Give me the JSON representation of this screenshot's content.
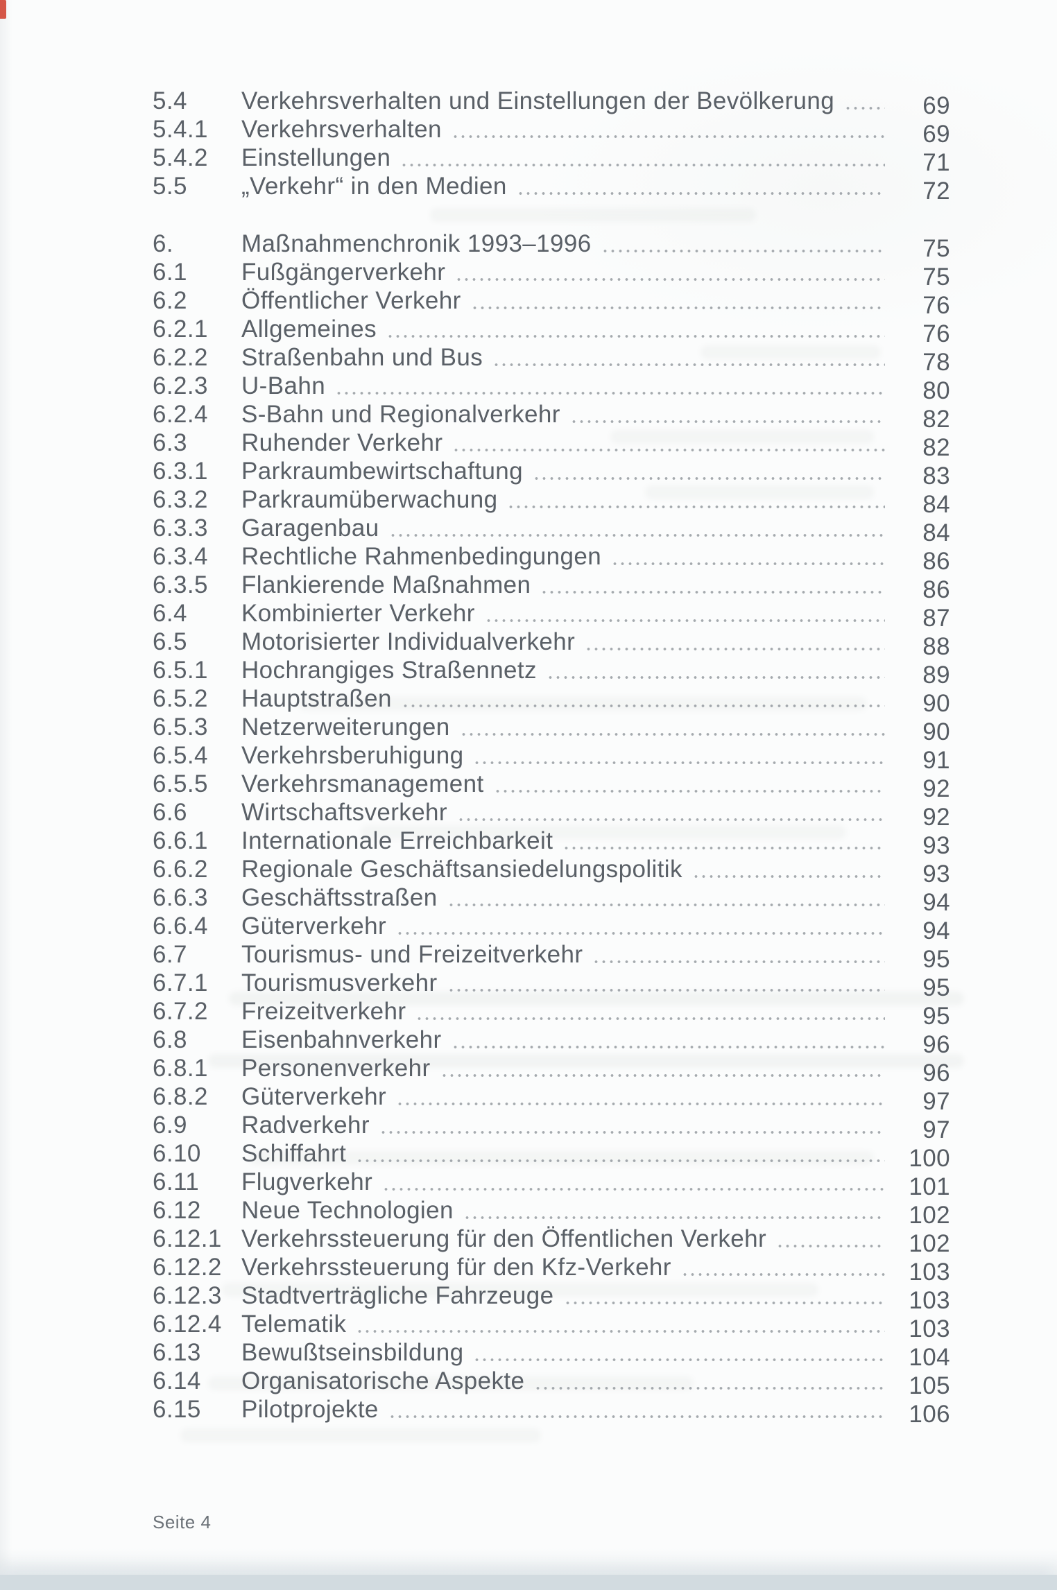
{
  "page": {
    "footer": "Seite 4",
    "colors": {
      "paper": "#fbfcfc",
      "text_gray": "#5a6067",
      "page_number_gray": "#565c63",
      "bottom_band": "#d2dbe0",
      "corner_mark_red": "#cf3a28"
    }
  },
  "toc": {
    "sections": [
      {
        "rows": [
          {
            "num": "5.4",
            "title": "Verkehrsverhalten und Einstellungen der Bevölkerung",
            "page": 69
          },
          {
            "num": "5.4.1",
            "title": "Verkehrsverhalten",
            "page": 69
          },
          {
            "num": "5.4.2",
            "title": "Einstellungen",
            "page": 71
          },
          {
            "num": "5.5",
            "title": "„Verkehr“ in den Medien",
            "page": 72
          }
        ]
      },
      {
        "rows": [
          {
            "num": "6.",
            "title": "Maßnahmenchronik 1993–1996",
            "page": 75
          },
          {
            "num": "6.1",
            "title": "Fußgängerverkehr",
            "page": 75
          },
          {
            "num": "6.2",
            "title": "Öffentlicher Verkehr",
            "page": 76
          },
          {
            "num": "6.2.1",
            "title": "Allgemeines",
            "page": 76
          },
          {
            "num": "6.2.2",
            "title": "Straßenbahn und Bus",
            "page": 78
          },
          {
            "num": "6.2.3",
            "title": "U-Bahn",
            "page": 80
          },
          {
            "num": "6.2.4",
            "title": "S-Bahn und Regionalverkehr",
            "page": 82
          },
          {
            "num": "6.3",
            "title": "Ruhender Verkehr",
            "page": 82
          },
          {
            "num": "6.3.1",
            "title": "Parkraumbewirtschaftung",
            "page": 83
          },
          {
            "num": "6.3.2",
            "title": "Parkraumüberwachung",
            "page": 84
          },
          {
            "num": "6.3.3",
            "title": "Garagenbau",
            "page": 84
          },
          {
            "num": "6.3.4",
            "title": "Rechtliche Rahmenbedingungen",
            "page": 86
          },
          {
            "num": "6.3.5",
            "title": "Flankierende Maßnahmen",
            "page": 86
          },
          {
            "num": "6.4",
            "title": "Kombinierter Verkehr",
            "page": 87
          },
          {
            "num": "6.5",
            "title": "Motorisierter Individualverkehr",
            "page": 88
          },
          {
            "num": "6.5.1",
            "title": "Hochrangiges Straßennetz",
            "page": 89
          },
          {
            "num": "6.5.2",
            "title": "Hauptstraßen",
            "page": 90
          },
          {
            "num": "6.5.3",
            "title": "Netzerweiterungen",
            "page": 90
          },
          {
            "num": "6.5.4",
            "title": "Verkehrsberuhigung",
            "page": 91
          },
          {
            "num": "6.5.5",
            "title": "Verkehrsmanagement",
            "page": 92
          },
          {
            "num": "6.6",
            "title": "Wirtschaftsverkehr",
            "page": 92
          },
          {
            "num": "6.6.1",
            "title": "Internationale Erreichbarkeit",
            "page": 93
          },
          {
            "num": "6.6.2",
            "title": "Regionale Geschäftsansiedelungspolitik",
            "page": 93
          },
          {
            "num": "6.6.3",
            "title": "Geschäftsstraßen",
            "page": 94
          },
          {
            "num": "6.6.4",
            "title": "Güterverkehr",
            "page": 94
          },
          {
            "num": "6.7",
            "title": "Tourismus- und Freizeitverkehr",
            "page": 95
          },
          {
            "num": "6.7.1",
            "title": "Tourismusverkehr",
            "page": 95
          },
          {
            "num": "6.7.2",
            "title": "Freizeitverkehr",
            "page": 95
          },
          {
            "num": "6.8",
            "title": "Eisenbahnverkehr",
            "page": 96
          },
          {
            "num": "6.8.1",
            "title": "Personenverkehr",
            "page": 96
          },
          {
            "num": "6.8.2",
            "title": "Güterverkehr",
            "page": 97
          },
          {
            "num": "6.9",
            "title": "Radverkehr",
            "page": 97
          },
          {
            "num": "6.10",
            "title": "Schiffahrt",
            "page": 100
          },
          {
            "num": "6.11",
            "title": "Flugverkehr",
            "page": 101
          },
          {
            "num": "6.12",
            "title": "Neue Technologien",
            "page": 102
          },
          {
            "num": "6.12.1",
            "title": "Verkehrssteuerung für den Öffentlichen Verkehr",
            "page": 102
          },
          {
            "num": "6.12.2",
            "title": "Verkehrssteuerung für den Kfz-Verkehr",
            "page": 103
          },
          {
            "num": "6.12.3",
            "title": "Stadtverträgliche Fahrzeuge",
            "page": 103
          },
          {
            "num": "6.12.4",
            "title": "Telematik",
            "page": 103
          },
          {
            "num": "6.13",
            "title": "Bewußtseinsbildung",
            "page": 104
          },
          {
            "num": "6.14",
            "title": "Organisatorische Aspekte",
            "page": 105
          },
          {
            "num": "6.15",
            "title": "Pilotprojekte",
            "page": 106
          }
        ]
      }
    ]
  }
}
